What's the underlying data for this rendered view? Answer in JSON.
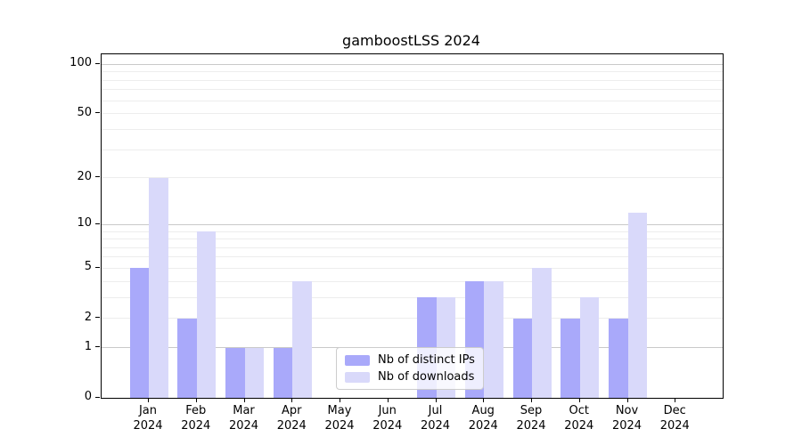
{
  "chart_data": {
    "type": "bar",
    "title": "gamboostLSS 2024",
    "categories": [
      "Jan 2024",
      "Feb 2024",
      "Mar 2024",
      "Apr 2024",
      "May 2024",
      "Jun 2024",
      "Jul 2024",
      "Aug 2024",
      "Sep 2024",
      "Oct 2024",
      "Nov 2024",
      "Dec 2024"
    ],
    "series": [
      {
        "name": "Nb of distinct IPs",
        "color": "#a9a9fa",
        "values": [
          5,
          2,
          1,
          1,
          0,
          0,
          3,
          4,
          2,
          2,
          2,
          0
        ]
      },
      {
        "name": "Nb of downloads",
        "color": "#d9d9fa",
        "values": [
          20,
          9,
          1,
          4,
          0,
          0,
          3,
          4,
          5,
          3,
          12,
          0
        ]
      }
    ],
    "xlabel": "",
    "ylabel": "",
    "yscale": "log10(1+x)",
    "ylim": [
      0,
      115
    ],
    "y_ticks": [
      0,
      1,
      2,
      5,
      10,
      20,
      50,
      100
    ],
    "gridlines": {
      "major": [
        1,
        10,
        100
      ],
      "minor": [
        2,
        3,
        4,
        5,
        6,
        7,
        8,
        9,
        20,
        30,
        40,
        50,
        60,
        70,
        80,
        90
      ]
    },
    "grid": true,
    "legend_position": "inside lower center"
  },
  "colors": {
    "bar_distinct_ips": "#a9a9fa",
    "bar_downloads": "#d9d9fa",
    "grid_major": "#c9c9c9",
    "grid_minor": "#ededed",
    "axis": "#000000",
    "legend_border": "#cccccc"
  }
}
